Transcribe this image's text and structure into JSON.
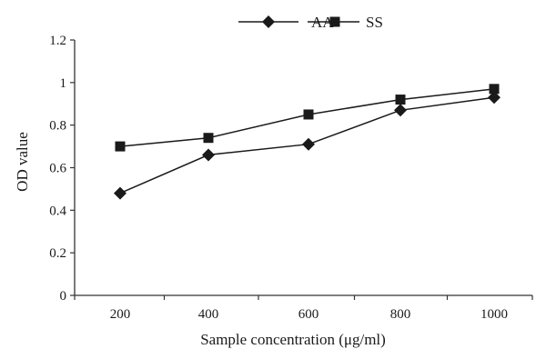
{
  "chart_data": {
    "type": "line",
    "title": "",
    "xlabel": "Sample concentration  (μg/ml)",
    "ylabel": "OD value",
    "categories": [
      "200",
      "400",
      "600",
      "800",
      "1000"
    ],
    "x": [
      200,
      400,
      600,
      800,
      1000
    ],
    "y_ticks": [
      "0",
      "0.2",
      "0.4",
      "0.6",
      "0.8",
      "1",
      "1.2"
    ],
    "ylim": [
      0,
      1.2
    ],
    "grid": false,
    "legend_position": "top-center",
    "series": [
      {
        "name": "AA",
        "marker": "diamond",
        "color": "#1a1a1a",
        "values": [
          0.48,
          0.66,
          0.71,
          0.87,
          0.93
        ]
      },
      {
        "name": "SS",
        "marker": "square",
        "color": "#1a1a1a",
        "values": [
          0.7,
          0.74,
          0.85,
          0.92,
          0.97
        ]
      }
    ]
  }
}
